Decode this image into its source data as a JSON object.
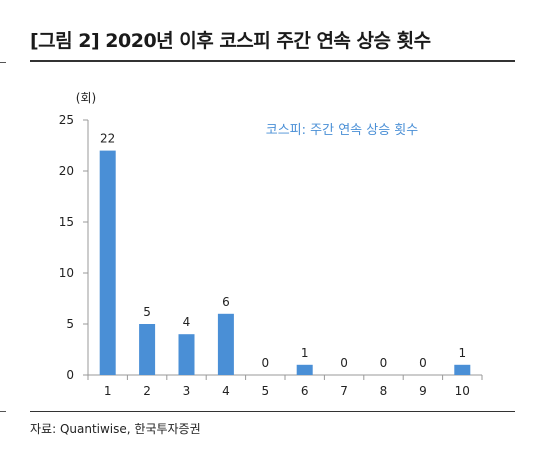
{
  "title": "[그림 2] 2020년 이후 코스피 주간 연속 상승 횟수",
  "source": "자료: Quantiwise, 한국투자증권",
  "colors": {
    "bar": "#4a8fd6",
    "legend_text": "#4a8fd6",
    "axis": "#999999"
  },
  "chart_data": {
    "type": "bar",
    "title": "",
    "unit": "(회)",
    "categories": [
      "1",
      "2",
      "3",
      "4",
      "5",
      "6",
      "7",
      "8",
      "9",
      "10"
    ],
    "series": [
      {
        "name": "코스피: 주간 연속 상승 횟수",
        "values": [
          22,
          5,
          4,
          6,
          0,
          1,
          0,
          0,
          0,
          1
        ]
      }
    ],
    "ylim": [
      0,
      25
    ],
    "yticks": [
      0,
      5,
      10,
      15,
      20,
      25
    ],
    "legend_position": "top-right",
    "grid": false
  }
}
